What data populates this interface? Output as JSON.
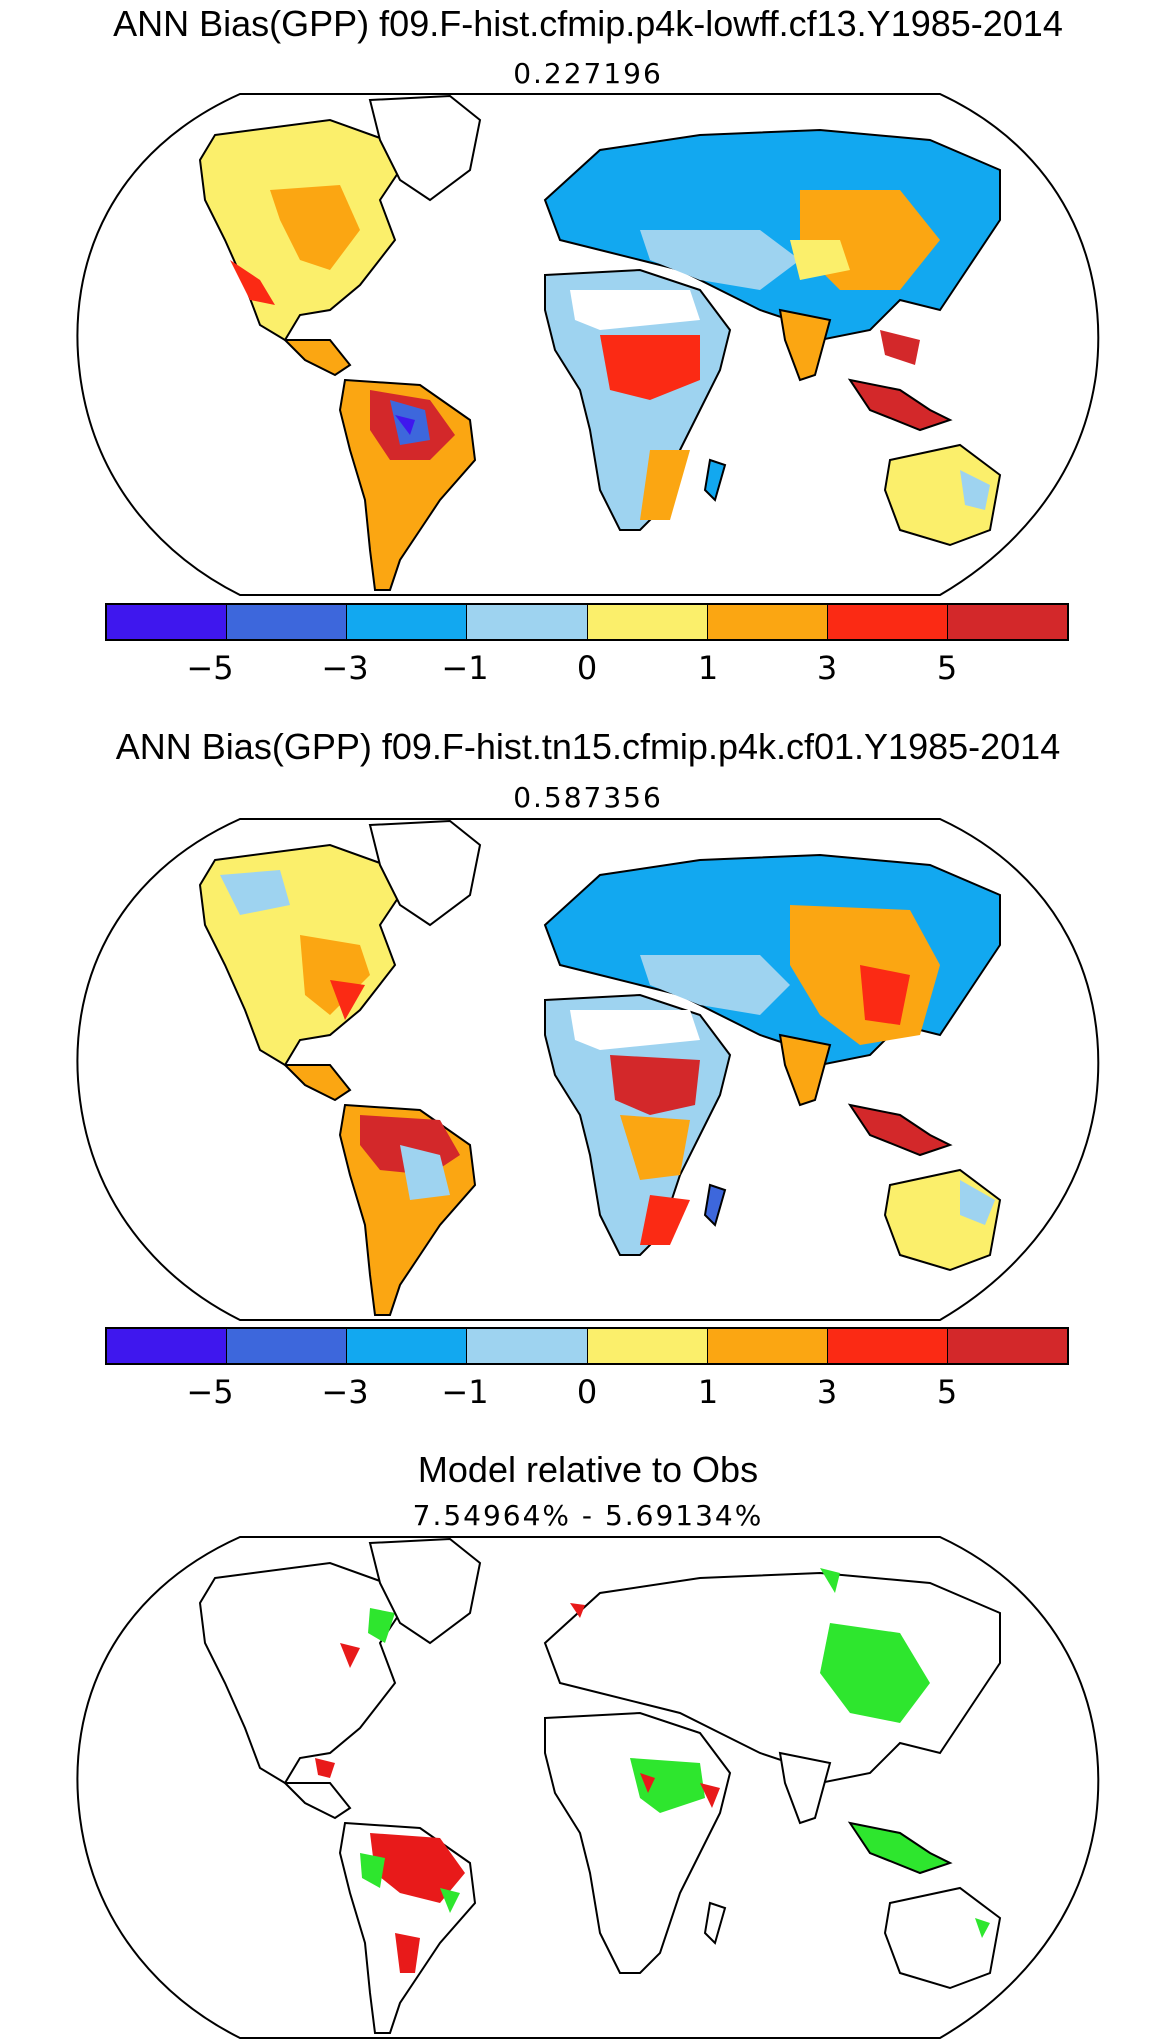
{
  "panels": [
    {
      "title": "ANN Bias(GPP) f09.F-hist.cfmip.p4k-lowff.cf13.Y1985-2014",
      "value": "0.227196"
    },
    {
      "title": "ANN Bias(GPP) f09.F-hist.tn15.cfmip.p4k.cf01.Y1985-2014",
      "value": "0.587356"
    },
    {
      "title": "Model relative to Obs",
      "value": "7.54964% - 5.69134%"
    }
  ],
  "colorbar": {
    "colors": [
      "#3f17ee",
      "#3d67dc",
      "#12a8f0",
      "#9ed3f0",
      "#fbef6b",
      "#fba612",
      "#fb2a14",
      "#d3282a"
    ],
    "tick_labels": [
      "−5",
      "−3",
      "−1",
      "0",
      "1",
      "3",
      "5"
    ],
    "tick_values": [
      -5,
      -3,
      -1,
      0,
      1,
      3,
      5
    ]
  },
  "legend_colors": {
    "improved": "#2ee62e",
    "degraded": "#e81a1a"
  }
}
